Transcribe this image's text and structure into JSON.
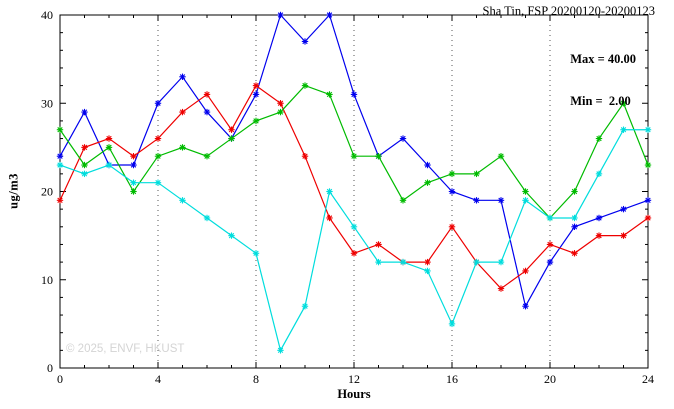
{
  "title": "Sha Tin, FSP 20200120-20200123",
  "watermark": "© 2025, ENVF, HKUST",
  "chart_data": {
    "type": "line",
    "title": "Sha Tin, FSP 20200120-20200123",
    "xlabel": "Hours",
    "ylabel": "ug/m3",
    "xlim": [
      0,
      24
    ],
    "ylim": [
      0,
      40
    ],
    "xticks": [
      0,
      4,
      8,
      12,
      16,
      20,
      24
    ],
    "yticks": [
      0,
      10,
      20,
      30,
      40
    ],
    "x_minor_step": 1,
    "y_minor_step": 2,
    "grid_x": [
      4,
      8,
      12,
      16,
      20
    ],
    "grid": "vertical-dotted",
    "legend_position": "none",
    "annotations": [
      "Max = 40.00",
      "Min =  2.00"
    ],
    "x": [
      0,
      1,
      2,
      3,
      4,
      5,
      6,
      7,
      8,
      9,
      10,
      11,
      12,
      13,
      14,
      15,
      16,
      17,
      18,
      19,
      20,
      21,
      22,
      23,
      24
    ],
    "series": [
      {
        "name": "series-blue",
        "color": "#0000ee",
        "marker": "asterisk",
        "values": [
          24,
          29,
          23,
          23,
          30,
          33,
          29,
          26,
          31,
          40,
          37,
          40,
          31,
          24,
          26,
          23,
          20,
          19,
          19,
          7,
          12,
          16,
          17,
          18,
          19
        ]
      },
      {
        "name": "series-red",
        "color": "#ee0000",
        "marker": "asterisk",
        "values": [
          19,
          25,
          26,
          24,
          26,
          29,
          31,
          27,
          32,
          30,
          24,
          17,
          13,
          14,
          12,
          12,
          16,
          12,
          9,
          11,
          14,
          13,
          15,
          15,
          17
        ]
      },
      {
        "name": "series-green",
        "color": "#00bb00",
        "marker": "asterisk",
        "values": [
          27,
          23,
          25,
          20,
          24,
          25,
          24,
          26,
          28,
          29,
          32,
          31,
          24,
          24,
          19,
          21,
          22,
          22,
          24,
          20,
          17,
          20,
          26,
          30,
          23
        ]
      },
      {
        "name": "series-cyan",
        "color": "#00dddd",
        "marker": "asterisk",
        "values": [
          23,
          22,
          23,
          21,
          21,
          19,
          17,
          15,
          13,
          2,
          7,
          20,
          16,
          12,
          12,
          11,
          5,
          12,
          12,
          19,
          17,
          17,
          22,
          27,
          27
        ]
      }
    ]
  }
}
